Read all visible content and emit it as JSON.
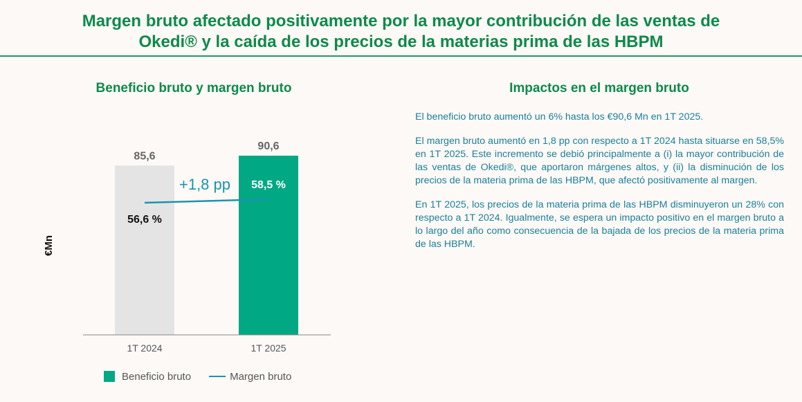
{
  "header": {
    "title_line1": "Margen bruto afectado positivamente por la mayor contribución de las ventas de",
    "title_line2": "Okedi® y la caída de los precios de la materias prima de las HBPM"
  },
  "left_panel": {
    "title": "Beneficio bruto y margen bruto"
  },
  "right_panel": {
    "title": "Impactos en el margen bruto",
    "paragraphs": [
      "El beneficio bruto aumentó un 6% hasta los €90,6 Mn en 1T 2025.",
      "El margen bruto aumentó en 1,8 pp con respecto a 1T 2024 hasta situarse en 58,5% en 1T 2025. Este incremento se debió principalmente a (i) la mayor contribución de las ventas de Okedi®, que aportaron márgenes altos, y (ii) la disminución de los precios de la materia prima de las HBPM, que afectó positivamente al margen.",
      "En 1T 2025, los precios de la materia prima de las HBPM disminuyeron un 28% con respecto a 1T 2024. Igualmente, se espera un impacto positivo en el margen bruto a lo largo del año como consecuencia de la bajada de los precios de la materia prima de las HBPM."
    ]
  },
  "chart_data": {
    "type": "bar",
    "title": "Beneficio bruto y margen bruto",
    "ylabel": "€Mn",
    "xlabel": "",
    "categories": [
      "1T 2024",
      "1T 2025"
    ],
    "ylim": [
      0,
      100
    ],
    "grid": false,
    "legend_position": "bottom",
    "series": [
      {
        "name": "Beneficio bruto",
        "kind": "bar",
        "values": [
          85.6,
          90.6
        ],
        "value_labels": [
          "85,6",
          "90,6"
        ],
        "colors": [
          "#e4e4e4",
          "#00a884"
        ]
      },
      {
        "name": "Margen bruto",
        "kind": "line",
        "values": [
          56.6,
          58.5
        ],
        "unit": "%",
        "value_labels": [
          "56,6 %",
          "58,5 %"
        ],
        "color": "#1b93b0"
      }
    ],
    "annotations": [
      "+1,8 pp"
    ]
  },
  "colors": {
    "title_green": "#0d8a4a",
    "bar_2024": "#e4e4e4",
    "bar_2025": "#00a884",
    "margin_line": "#1b93b0",
    "body_text": "#1b7f9a",
    "background": "#fcf9f6"
  }
}
